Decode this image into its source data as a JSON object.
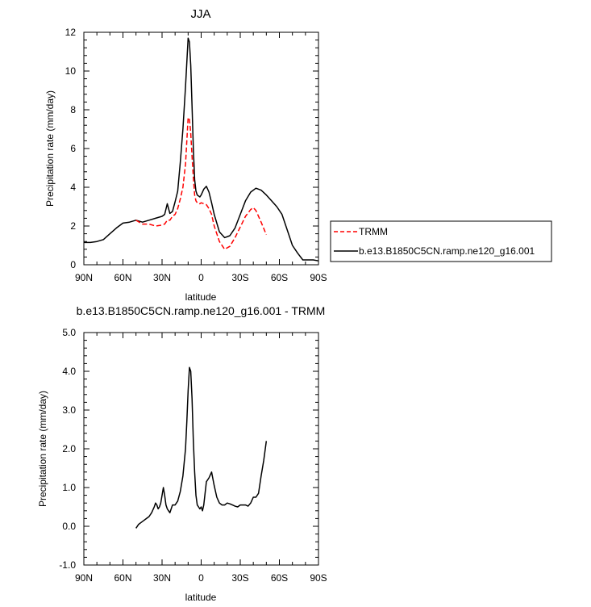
{
  "chart_data": [
    {
      "type": "line",
      "title": "JJA",
      "xlabel": "latitude",
      "ylabel": "Precipitation rate (mm/day)",
      "xlim": [
        -90,
        90
      ],
      "ylim": [
        0,
        12
      ],
      "x_ticks": [
        {
          "v": -90,
          "label": "90N"
        },
        {
          "v": -60,
          "label": "60N"
        },
        {
          "v": -30,
          "label": "30N"
        },
        {
          "v": 0,
          "label": "0"
        },
        {
          "v": 30,
          "label": "30S"
        },
        {
          "v": 60,
          "label": "60S"
        },
        {
          "v": 90,
          "label": "90S"
        }
      ],
      "y_ticks": [
        {
          "v": 0,
          "label": "0"
        },
        {
          "v": 2,
          "label": "2"
        },
        {
          "v": 4,
          "label": "4"
        },
        {
          "v": 6,
          "label": "6"
        },
        {
          "v": 8,
          "label": "8"
        },
        {
          "v": 10,
          "label": "10"
        },
        {
          "v": 12,
          "label": "12"
        }
      ],
      "legend": {
        "placement": "right",
        "entries": [
          {
            "name": "TRMM",
            "color": "#ff0000",
            "dash": true
          },
          {
            "name": "b.e13.B1850C5CN.ramp.ne120_g16.001",
            "color": "#000000",
            "dash": false
          }
        ]
      },
      "series": [
        {
          "name": "b.e13.B1850C5CN.ramp.ne120_g16.001",
          "color": "#000000",
          "dashed": false,
          "x": [
            -90,
            -85,
            -80,
            -75,
            -70,
            -65,
            -60,
            -55,
            -50,
            -45,
            -40,
            -35,
            -30,
            -28,
            -26,
            -24,
            -22,
            -20,
            -18,
            -16,
            -14,
            -12,
            -10,
            -9,
            -8,
            -7,
            -6,
            -5,
            -4,
            -3,
            -2,
            -1,
            0,
            2,
            4,
            6,
            8,
            10,
            14,
            18,
            22,
            26,
            30,
            34,
            38,
            42,
            46,
            50,
            54,
            58,
            62,
            66,
            70,
            74,
            78,
            82,
            86,
            90
          ],
          "y": [
            1.15,
            1.15,
            1.2,
            1.3,
            1.6,
            1.9,
            2.15,
            2.2,
            2.3,
            2.2,
            2.3,
            2.4,
            2.5,
            2.6,
            3.15,
            2.65,
            2.75,
            3.25,
            3.8,
            5.3,
            7.0,
            9.2,
            11.7,
            11.5,
            10.3,
            8.2,
            6.0,
            4.4,
            3.8,
            3.6,
            3.55,
            3.5,
            3.6,
            3.9,
            4.05,
            3.75,
            3.2,
            2.6,
            1.7,
            1.4,
            1.5,
            1.9,
            2.6,
            3.3,
            3.75,
            3.95,
            3.85,
            3.6,
            3.3,
            3.0,
            2.6,
            1.8,
            1.0,
            0.6,
            0.25,
            0.25,
            0.25,
            0.2
          ]
        },
        {
          "name": "TRMM",
          "color": "#ff0000",
          "dashed": true,
          "x": [
            -50,
            -45,
            -40,
            -35,
            -30,
            -28,
            -26,
            -24,
            -22,
            -20,
            -18,
            -16,
            -14,
            -12,
            -10,
            -9,
            -8,
            -7,
            -6,
            -5,
            -4,
            -3,
            -2,
            -1,
            0,
            2,
            4,
            6,
            8,
            10,
            14,
            18,
            22,
            26,
            30,
            34,
            38,
            40,
            42,
            46,
            50
          ],
          "y": [
            2.3,
            2.1,
            2.1,
            2.0,
            2.05,
            2.1,
            2.3,
            2.3,
            2.5,
            2.6,
            2.9,
            3.4,
            4.0,
            5.2,
            7.6,
            7.5,
            6.8,
            5.6,
            4.5,
            3.6,
            3.3,
            3.2,
            3.15,
            3.15,
            3.2,
            3.15,
            3.1,
            2.9,
            2.6,
            2.0,
            1.2,
            0.8,
            0.95,
            1.4,
            1.95,
            2.5,
            2.85,
            2.95,
            2.8,
            2.2,
            1.55
          ]
        }
      ]
    },
    {
      "type": "line",
      "title": "b.e13.B1850C5CN.ramp.ne120_g16.001 - TRMM",
      "xlabel": "latitude",
      "ylabel": "Precipitation rate (mm/day)",
      "xlim": [
        -90,
        90
      ],
      "ylim": [
        -1,
        5
      ],
      "x_ticks": [
        {
          "v": -90,
          "label": "90N"
        },
        {
          "v": -60,
          "label": "60N"
        },
        {
          "v": -30,
          "label": "30N"
        },
        {
          "v": 0,
          "label": "0"
        },
        {
          "v": 30,
          "label": "30S"
        },
        {
          "v": 60,
          "label": "60S"
        },
        {
          "v": 90,
          "label": "90S"
        }
      ],
      "y_ticks": [
        {
          "v": -1,
          "label": "-1.0"
        },
        {
          "v": 0,
          "label": "0.0"
        },
        {
          "v": 1,
          "label": "1.0"
        },
        {
          "v": 2,
          "label": "2.0"
        },
        {
          "v": 3,
          "label": "3.0"
        },
        {
          "v": 4,
          "label": "4.0"
        },
        {
          "v": 5,
          "label": "5.0"
        }
      ],
      "series": [
        {
          "name": "b.e13.B1850C5CN.ramp.ne120_g16.001 - TRMM",
          "color": "#000000",
          "dashed": false,
          "x": [
            -50,
            -48,
            -46,
            -44,
            -42,
            -40,
            -38,
            -36,
            -35,
            -34,
            -33,
            -32,
            -31,
            -30,
            -29,
            -28,
            -27,
            -26,
            -25,
            -24,
            -23,
            -22,
            -20,
            -18,
            -16,
            -14,
            -12,
            -11,
            -10,
            -9,
            -8,
            -7,
            -6,
            -5,
            -4,
            -3,
            -2,
            -1,
            0,
            1,
            2,
            4,
            6,
            8,
            10,
            12,
            14,
            16,
            18,
            20,
            22,
            24,
            26,
            28,
            30,
            32,
            34,
            36,
            38,
            40,
            42,
            44,
            46,
            48,
            50
          ],
          "y": [
            -0.05,
            0.05,
            0.1,
            0.15,
            0.2,
            0.25,
            0.35,
            0.5,
            0.6,
            0.55,
            0.45,
            0.5,
            0.6,
            0.8,
            1.0,
            0.8,
            0.55,
            0.45,
            0.4,
            0.35,
            0.45,
            0.55,
            0.55,
            0.65,
            0.9,
            1.3,
            2.0,
            2.7,
            3.5,
            4.1,
            4.0,
            3.3,
            2.2,
            1.4,
            0.8,
            0.55,
            0.5,
            0.45,
            0.5,
            0.4,
            0.55,
            1.15,
            1.25,
            1.4,
            1.05,
            0.75,
            0.6,
            0.55,
            0.55,
            0.6,
            0.58,
            0.55,
            0.52,
            0.5,
            0.55,
            0.55,
            0.55,
            0.52,
            0.6,
            0.75,
            0.75,
            0.85,
            1.3,
            1.7,
            2.2
          ]
        }
      ]
    }
  ]
}
